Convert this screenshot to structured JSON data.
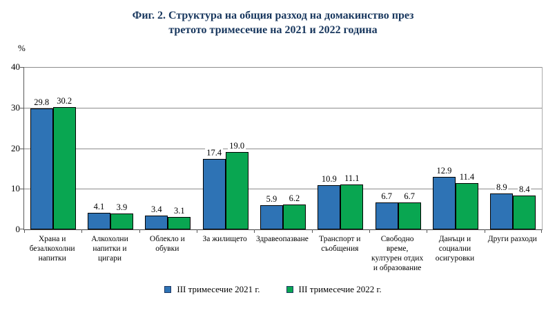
{
  "title": {
    "line1": "Фиг. 2. Структура на общия разход на домакинство през",
    "line2": "третото тримесечие на 2021 и 2022 година"
  },
  "y_axis": {
    "unit_label": "%",
    "tick_labels": [
      "0",
      "10",
      "20",
      "30",
      "40"
    ],
    "tick_values": [
      0,
      10,
      20,
      30,
      40
    ]
  },
  "chart_data": {
    "type": "bar",
    "title": "Фиг. 2. Структура на общия разход на домакинство през третото тримесечие на 2021 и 2022 година",
    "xlabel": "",
    "ylabel": "%",
    "ylim": [
      0,
      40
    ],
    "grid": true,
    "legend_position": "bottom",
    "categories": [
      "Храна и безалкохолни напитки",
      "Алкохолни напитки и цигари",
      "Облекло и обувки",
      "За жилището",
      "Здравеопазване",
      "Транспорт и съобщения",
      "Свободно време, културен отдих и образование",
      "Данъци и социални осигуровки",
      "Други разходи"
    ],
    "category_lines": [
      [
        "Храна и",
        "безалкохолни",
        "напитки"
      ],
      [
        "Алкохолни",
        "напитки и",
        "цигари"
      ],
      [
        "Облекло и",
        "обувки"
      ],
      [
        "За жилището"
      ],
      [
        "Здравеопазване"
      ],
      [
        "Транспорт и",
        "съобщения"
      ],
      [
        "Свободно",
        "време,",
        "културен отдих",
        "и образование"
      ],
      [
        "Данъци и",
        "социални",
        "осигуровки"
      ],
      [
        "Други разходи"
      ]
    ],
    "series": [
      {
        "name": "III тримесечие 2021 г.",
        "color": "#2E73B5",
        "values": [
          29.8,
          4.1,
          3.4,
          17.4,
          5.9,
          10.9,
          6.7,
          12.9,
          8.9
        ]
      },
      {
        "name": "III тримесечие 2022 г.",
        "color": "#09A651",
        "values": [
          30.2,
          3.9,
          3.1,
          19.0,
          6.2,
          11.1,
          6.7,
          11.4,
          8.4
        ]
      }
    ]
  },
  "colors": {
    "title": "#17365D",
    "series_2021": "#2E73B5",
    "series_2022": "#09A651",
    "bar_border": "#000000",
    "gridline": "#8C8C8C",
    "axis": "#595959"
  }
}
